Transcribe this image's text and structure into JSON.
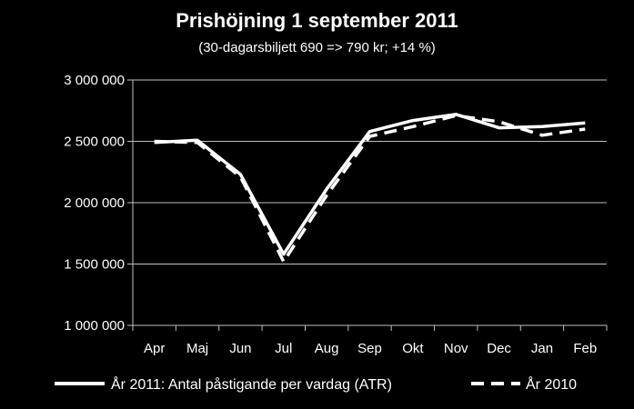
{
  "chart_data": {
    "type": "line",
    "title": "Prishöjning 1 september 2011",
    "subtitle": "(30-dagarsbiljett 690 => 790 kr; +14 %)",
    "xlabel": "",
    "ylabel": "",
    "categories": [
      "Apr",
      "Maj",
      "Jun",
      "Jul",
      "Aug",
      "Sep",
      "Okt",
      "Nov",
      "Dec",
      "Jan",
      "Feb"
    ],
    "ylim": [
      1000000,
      3000000
    ],
    "yticks": [
      1000000,
      1500000,
      2000000,
      2500000,
      3000000
    ],
    "ytick_labels": [
      "1 000 000",
      "1 500 000",
      "2 000 000",
      "2 500 000",
      "3 000 000"
    ],
    "grid": true,
    "legend_position": "bottom",
    "series": [
      {
        "name": "År 2011: Antal påstigande per vardag (ATR)",
        "style": "solid",
        "color": "#ffffff",
        "values": [
          2490000,
          2510000,
          2230000,
          1580000,
          2110000,
          2580000,
          2670000,
          2720000,
          2610000,
          2620000,
          2650000
        ]
      },
      {
        "name": "År 2010",
        "style": "dashed",
        "color": "#ffffff",
        "values": [
          2500000,
          2490000,
          2210000,
          1520000,
          2060000,
          2540000,
          2620000,
          2710000,
          2660000,
          2550000,
          2600000
        ]
      }
    ]
  }
}
